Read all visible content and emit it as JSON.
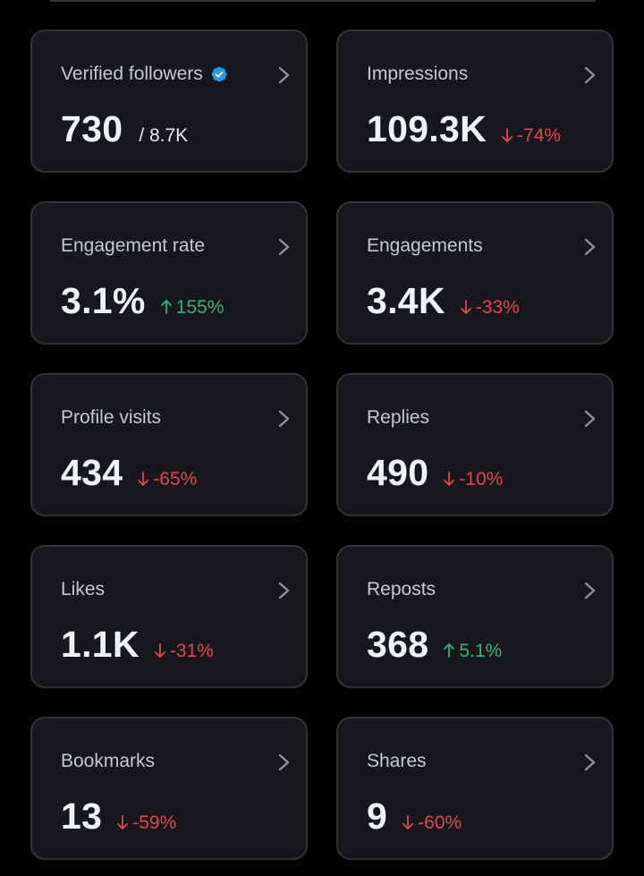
{
  "colors": {
    "background": "#000000",
    "card": "#16181c",
    "border": "#2f3336",
    "positive": "#2fb37a",
    "negative": "#e0454f",
    "verified": "#1d9bf0"
  },
  "cards": [
    {
      "title": "Verified followers",
      "value": "730",
      "sub": "/ 8.7K",
      "verified": true
    },
    {
      "title": "Impressions",
      "value": "109.3K",
      "delta": "-74%",
      "trend": "down"
    },
    {
      "title": "Engagement rate",
      "value": "3.1%",
      "delta": "155%",
      "trend": "up"
    },
    {
      "title": "Engagements",
      "value": "3.4K",
      "delta": "-33%",
      "trend": "down"
    },
    {
      "title": "Profile visits",
      "value": "434",
      "delta": "-65%",
      "trend": "down"
    },
    {
      "title": "Replies",
      "value": "490",
      "delta": "-10%",
      "trend": "down"
    },
    {
      "title": "Likes",
      "value": "1.1K",
      "delta": "-31%",
      "trend": "down"
    },
    {
      "title": "Reposts",
      "value": "368",
      "delta": "5.1%",
      "trend": "up"
    },
    {
      "title": "Bookmarks",
      "value": "13",
      "delta": "-59%",
      "trend": "down"
    },
    {
      "title": "Shares",
      "value": "9",
      "delta": "-60%",
      "trend": "down"
    }
  ]
}
